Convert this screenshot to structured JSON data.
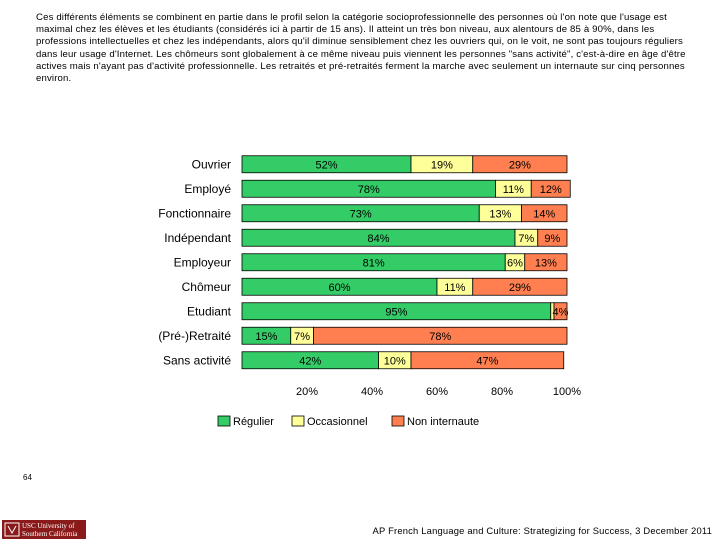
{
  "paragraph": "Ces différents éléments se combinent en partie dans le profil selon la catégorie socioprofessionnelle des personnes où l'on note que l'usage est maximal chez les élèves et les étudiants (considérés ici à partir de 15 ans). Il atteint un très bon niveau, aux alentours de 85 à 90%, dans les professions intellectuelles et chez les indépendants, alors qu'il diminue sensiblement chez les ouvriers qui, on le voit, ne sont pas toujours réguliers dans leur usage d'Internet. Les chômeurs sont globalement à ce même niveau puis viennent les personnes \"sans activité\", c'est-à-dire en âge d'être actives mais n'ayant pas d'activité professionnelle. Les retraités et pré-retraités ferment la marche avec seulement un internaute sur cinq personnes environ.",
  "page_number": "64",
  "footer": "AP French Language and Culture: Strategizing for Success, 3 December 2011",
  "logo": {
    "line1": "USC University of",
    "line2": "Southern California"
  },
  "colors": {
    "regulier": "#33cc66",
    "occasionnel": "#ffff99",
    "non_internaute": "#ff7f50",
    "logo_bg": "#8a1a1a"
  },
  "chart_data": {
    "type": "bar",
    "orientation": "horizontal",
    "stacked": true,
    "categories": [
      "Ouvrier",
      "Employé",
      "Fonctionnaire",
      "Indépendant",
      "Employeur",
      "Chômeur",
      "Etudiant",
      "(Pré-)Retraité",
      "Sans activité"
    ],
    "series": [
      {
        "name": "Régulier",
        "values": [
          52,
          78,
          73,
          84,
          81,
          60,
          95,
          15,
          42
        ],
        "labels": [
          "52%",
          "78%",
          "73%",
          "84%",
          "81%",
          "60%",
          "95%",
          "15%",
          "42%"
        ]
      },
      {
        "name": "Occasionnel",
        "values": [
          19,
          11,
          13,
          7,
          6,
          11,
          1,
          7,
          10
        ],
        "labels": [
          "19%",
          "11%",
          "13%",
          "7%",
          "6%",
          "11%",
          "",
          "7%",
          "10%"
        ]
      },
      {
        "name": "Non internaute",
        "values": [
          29,
          12,
          14,
          9,
          13,
          29,
          4,
          78,
          47
        ],
        "labels": [
          "29%",
          "12%",
          "14%",
          "9%",
          "13%",
          "29%",
          "4%",
          "78%",
          "47%"
        ]
      }
    ],
    "x_ticks": [
      "20%",
      "40%",
      "60%",
      "80%",
      "100%"
    ],
    "x_tick_values": [
      20,
      40,
      60,
      80,
      100
    ],
    "xlim": [
      0,
      100
    ],
    "grid": false,
    "legend": "bottom"
  }
}
